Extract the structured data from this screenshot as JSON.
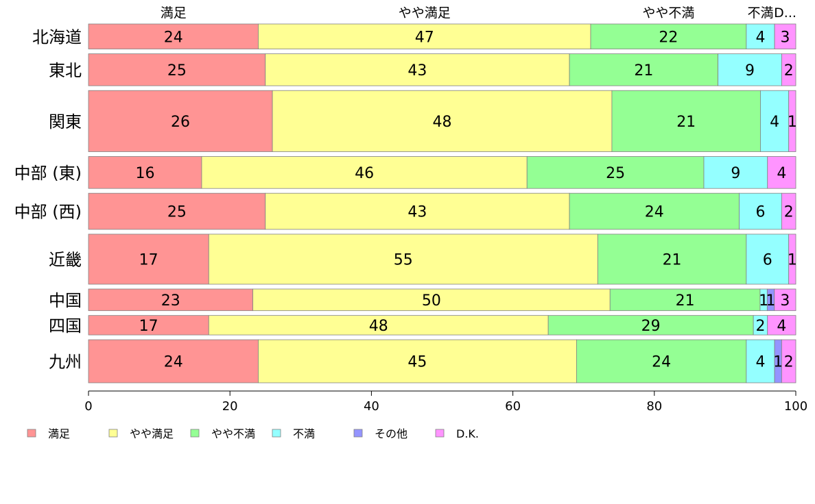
{
  "chart_data": {
    "type": "bar",
    "orientation": "horizontal",
    "stacked": true,
    "categories": [
      "北海道",
      "東北",
      "関東",
      "中部 (東)",
      "中部 (西)",
      "近畿",
      "中国",
      "四国",
      "九州"
    ],
    "series": [
      {
        "name": "満足",
        "color": "#ff9494",
        "values": [
          24,
          25,
          26,
          16,
          25,
          17,
          23,
          17,
          24
        ]
      },
      {
        "name": "やや満足",
        "color": "#ffff94",
        "values": [
          47,
          43,
          48,
          46,
          43,
          55,
          50,
          48,
          45
        ]
      },
      {
        "name": "やや不満",
        "color": "#94ff94",
        "values": [
          22,
          21,
          21,
          25,
          24,
          21,
          21,
          29,
          24
        ]
      },
      {
        "name": "不満",
        "color": "#94ffff",
        "values": [
          4,
          9,
          4,
          9,
          6,
          6,
          1,
          2,
          4
        ]
      },
      {
        "name": "その他",
        "color": "#9494ff",
        "values": [
          0,
          0,
          0,
          0,
          0,
          0,
          1,
          0,
          1
        ]
      },
      {
        "name": "D.K.",
        "color": "#ff94ff",
        "values": [
          3,
          2,
          1,
          4,
          2,
          1,
          3,
          4,
          2
        ]
      }
    ],
    "segment_labels": [
      [
        "24",
        "47",
        "22",
        "4",
        "",
        "3"
      ],
      [
        "25",
        "43",
        "21",
        "9",
        "",
        "2"
      ],
      [
        "26",
        "48",
        "21",
        "4",
        "",
        "1"
      ],
      [
        "16",
        "46",
        "25",
        "9",
        "",
        "4"
      ],
      [
        "25",
        "43",
        "24",
        "6",
        "",
        "2"
      ],
      [
        "17",
        "55",
        "21",
        "6",
        "",
        "1"
      ],
      [
        "23",
        "50",
        "21",
        "1",
        "1",
        "3"
      ],
      [
        "17",
        "48",
        "29",
        "2",
        "",
        "4"
      ],
      [
        "24",
        "45",
        "24",
        "4",
        "1",
        "2"
      ]
    ],
    "row_weights": [
      0.9,
      1.15,
      2.2,
      1.15,
      1.3,
      1.8,
      0.78,
      0.7,
      1.55
    ],
    "top_labels": [
      "満足",
      "やや満足",
      "やや不満",
      "不満",
      "D..."
    ],
    "xlim": [
      0,
      100
    ],
    "xticks": [
      "0",
      "20",
      "40",
      "60",
      "80",
      "100"
    ],
    "legend": [
      "満足",
      "やや満足",
      "やや不満",
      "不満",
      "その他",
      "D.K."
    ],
    "legend_position": "bottom",
    "title": "",
    "xlabel": "",
    "ylabel": ""
  }
}
